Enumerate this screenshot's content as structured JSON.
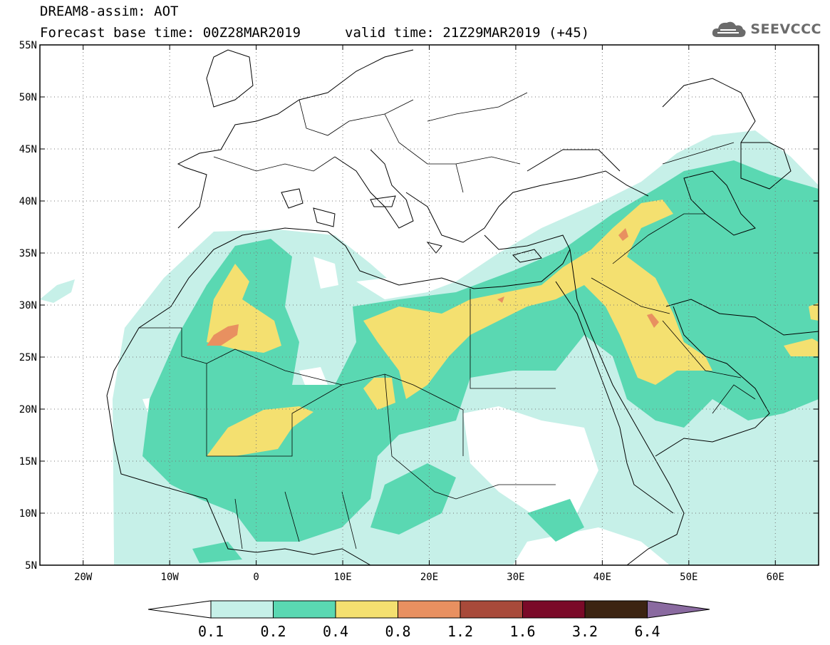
{
  "header": {
    "title": "DREAM8-assim: AOT",
    "base_time": "Forecast base time: 00Z28MAR2019",
    "valid_time": "valid time: 21Z29MAR2019 (+45)"
  },
  "logo": {
    "text": "SEEVCCC",
    "icon": "cloud-logo-icon",
    "color": "#6b6b6b"
  },
  "map": {
    "lon_range": [
      -25,
      65
    ],
    "lat_range": [
      5,
      55
    ],
    "grid": "dotted",
    "lat_ticks": [
      "5N",
      "10N",
      "15N",
      "20N",
      "25N",
      "30N",
      "35N",
      "40N",
      "45N",
      "50N",
      "55N"
    ],
    "lon_ticks": [
      "20W",
      "10W",
      "0",
      "10E",
      "20E",
      "30E",
      "40E",
      "50E",
      "60E"
    ]
  },
  "colorbar": {
    "labels": [
      "0.1",
      "0.2",
      "0.4",
      "0.8",
      "1.2",
      "1.6",
      "3.2",
      "6.4"
    ],
    "colors": [
      "#ffffff",
      "#c6f0e8",
      "#5ad8b2",
      "#f4e070",
      "#e89060",
      "#a84a3a",
      "#7a0a28",
      "#3c2412",
      "#8a6aa0"
    ]
  }
}
